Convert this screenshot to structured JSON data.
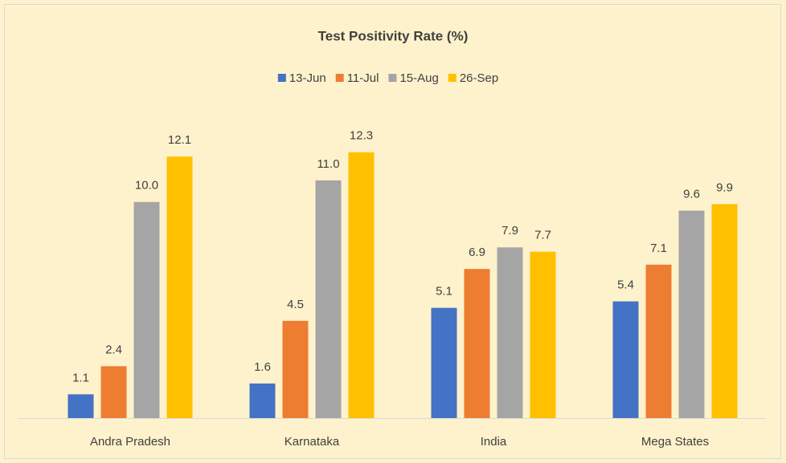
{
  "chart_data": {
    "type": "bar",
    "title": "Test Positivity Rate (%)",
    "categories": [
      "Andra Pradesh",
      "Karnataka",
      "India",
      "Mega States"
    ],
    "series": [
      {
        "name": "13-Jun",
        "color": "#4472c4",
        "values": [
          1.1,
          1.6,
          5.1,
          5.4
        ],
        "value_labels": [
          "1.1",
          "1.6",
          "5.1",
          "5.4"
        ]
      },
      {
        "name": "11-Jul",
        "color": "#ed7d31",
        "values": [
          2.4,
          4.5,
          6.9,
          7.1
        ],
        "value_labels": [
          "2.4",
          "4.5",
          "6.9",
          "7.1"
        ]
      },
      {
        "name": "15-Aug",
        "color": "#a5a5a5",
        "values": [
          10.0,
          11.0,
          7.9,
          9.6
        ],
        "value_labels": [
          "10.0",
          "11.0",
          "7.9",
          "9.6"
        ]
      },
      {
        "name": "26-Sep",
        "color": "#ffc000",
        "values": [
          12.1,
          12.3,
          7.7,
          9.9
        ],
        "value_labels": [
          "12.1",
          "12.3",
          "7.7",
          "9.9"
        ]
      }
    ],
    "ylim": [
      0,
      14
    ],
    "legend": "top"
  }
}
